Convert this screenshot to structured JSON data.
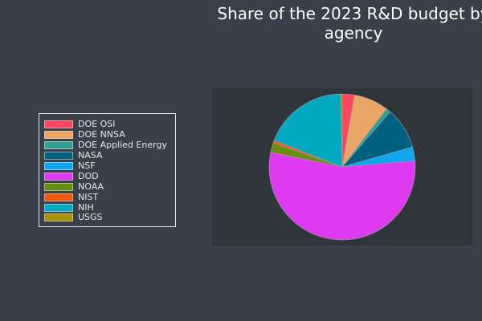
{
  "chart_data": {
    "type": "pie",
    "title": "Share of the 2023 R&D budget by\nagency",
    "legend_position": "left",
    "categories": [
      "DOE OSI",
      "DOE NNSA",
      "DOE Applied Energy",
      "NASA",
      "NSF",
      "DOD",
      "NOAA",
      "NIST",
      "NIH",
      "USGS"
    ],
    "values": [
      2.7,
      7.7,
      1.0,
      9.2,
      3.1,
      54.5,
      2.1,
      0.6,
      18.7,
      0.4
    ],
    "colors": [
      "#f9475f",
      "#eaa566",
      "#329f90",
      "#00607f",
      "#0fa5ef",
      "#de3aef",
      "#6a8c0f",
      "#f0590f",
      "#00a8c0",
      "#a89106"
    ]
  }
}
